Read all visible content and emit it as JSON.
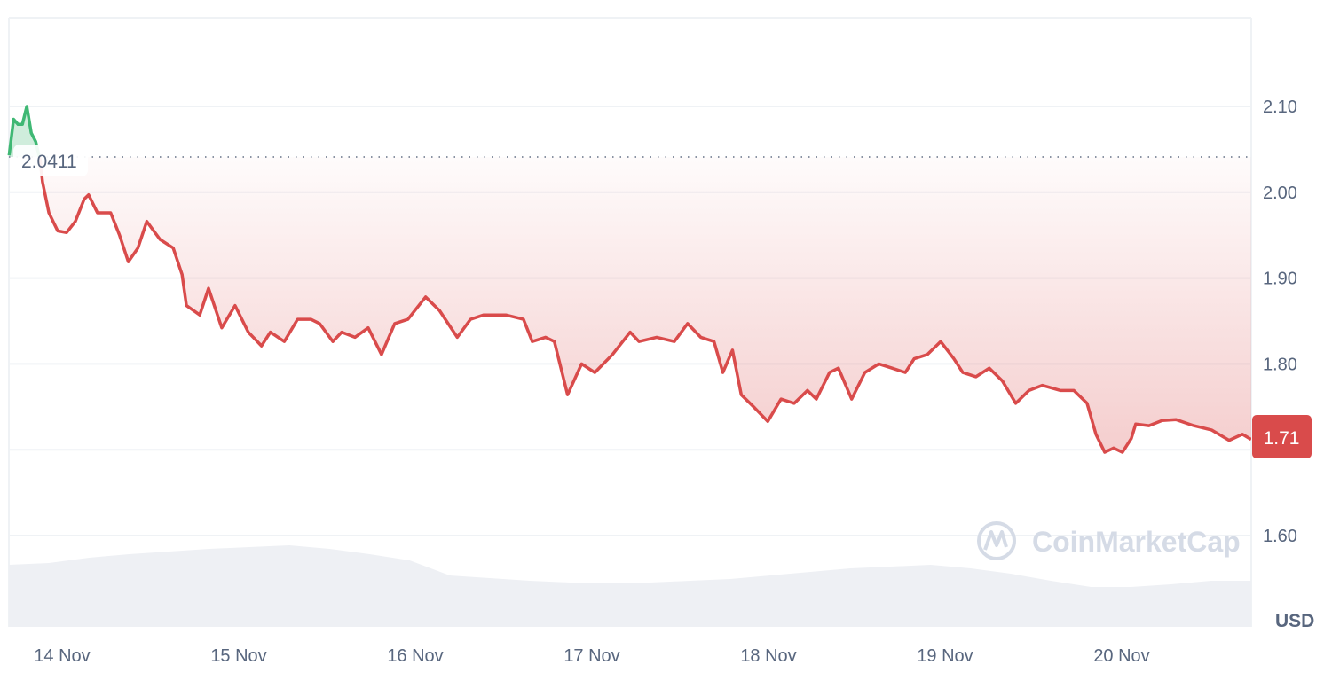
{
  "chart_data": {
    "type": "line",
    "currency_label": "USD",
    "baseline_value": 2.0411,
    "baseline_label": "2.0411",
    "current_price_label": "1.71",
    "ylim": [
      1.6,
      2.1
    ],
    "y_ticks": [
      "2.10",
      "2.00",
      "1.90",
      "1.80",
      "1.60"
    ],
    "y_tick_values": [
      2.1,
      2.0,
      1.9,
      1.8,
      1.6
    ],
    "y_grid_values": [
      2.1,
      2.0,
      1.9,
      1.8,
      1.7,
      1.6
    ],
    "x_ticks": [
      "14 Nov",
      "15 Nov",
      "16 Nov",
      "17 Nov",
      "18 Nov",
      "19 Nov",
      "20 Nov"
    ],
    "grid": true,
    "colors": {
      "up": "#3fb874",
      "down": "#d94b4b",
      "axis_text": "#58667e",
      "grid": "#eff2f5",
      "volume": "#eef0f4",
      "watermark": "#d5dbe6"
    },
    "watermark": "CoinMarketCap",
    "series": [
      {
        "points": [
          [
            "13 Nov 16:48",
            2.043
          ],
          [
            "13 Nov 17:24",
            2.085
          ],
          [
            "13 Nov 18:00",
            2.079
          ],
          [
            "13 Nov 18:36",
            2.079
          ],
          [
            "13 Nov 19:12",
            2.1
          ],
          [
            "13 Nov 19:48",
            2.069
          ],
          [
            "13 Nov 20:24",
            2.059
          ],
          [
            "13 Nov 21:00",
            2.038
          ],
          [
            "13 Nov 21:20",
            2.012
          ],
          [
            "13 Nov 22:12",
            1.976
          ],
          [
            "13 Nov 23:24",
            1.955
          ],
          [
            "14 Nov 00:36",
            1.953
          ],
          [
            "14 Nov 01:48",
            1.966
          ],
          [
            "14 Nov 03:00",
            1.992
          ],
          [
            "14 Nov 03:36",
            1.997
          ],
          [
            "14 Nov 04:48",
            1.976
          ],
          [
            "14 Nov 06:36",
            1.976
          ],
          [
            "14 Nov 07:48",
            1.95
          ],
          [
            "14 Nov 09:00",
            1.919
          ],
          [
            "14 Nov 10:18",
            1.935
          ],
          [
            "14 Nov 11:30",
            1.966
          ],
          [
            "14 Nov 13:18",
            1.945
          ],
          [
            "14 Nov 15:06",
            1.935
          ],
          [
            "14 Nov 16:18",
            1.904
          ],
          [
            "14 Nov 16:54",
            1.868
          ],
          [
            "14 Nov 18:42",
            1.857
          ],
          [
            "14 Nov 19:54",
            1.888
          ],
          [
            "14 Nov 21:42",
            1.842
          ],
          [
            "14 Nov 23:30",
            1.868
          ],
          [
            "15 Nov 01:18",
            1.837
          ],
          [
            "15 Nov 03:06",
            1.821
          ],
          [
            "15 Nov 04:18",
            1.837
          ],
          [
            "15 Nov 06:12",
            1.826
          ],
          [
            "15 Nov 08:00",
            1.852
          ],
          [
            "15 Nov 09:48",
            1.852
          ],
          [
            "15 Nov 11:00",
            1.847
          ],
          [
            "15 Nov 12:48",
            1.826
          ],
          [
            "15 Nov 14:00",
            1.837
          ],
          [
            "15 Nov 15:48",
            1.831
          ],
          [
            "15 Nov 17:36",
            1.842
          ],
          [
            "15 Nov 19:24",
            1.811
          ],
          [
            "15 Nov 21:12",
            1.847
          ],
          [
            "15 Nov 23:00",
            1.852
          ],
          [
            "16 Nov 01:24",
            1.878
          ],
          [
            "16 Nov 03:18",
            1.862
          ],
          [
            "16 Nov 05:42",
            1.831
          ],
          [
            "16 Nov 07:30",
            1.852
          ],
          [
            "16 Nov 09:18",
            1.857
          ],
          [
            "16 Nov 12:18",
            1.857
          ],
          [
            "16 Nov 14:42",
            1.852
          ],
          [
            "16 Nov 15:54",
            1.826
          ],
          [
            "16 Nov 17:42",
            1.831
          ],
          [
            "16 Nov 18:54",
            1.826
          ],
          [
            "16 Nov 20:42",
            1.764
          ],
          [
            "16 Nov 22:36",
            1.8
          ],
          [
            "17 Nov 00:24",
            1.79
          ],
          [
            "17 Nov 02:48",
            1.811
          ],
          [
            "17 Nov 05:12",
            1.837
          ],
          [
            "17 Nov 06:24",
            1.826
          ],
          [
            "17 Nov 08:48",
            1.831
          ],
          [
            "17 Nov 11:12",
            1.826
          ],
          [
            "17 Nov 13:00",
            1.847
          ],
          [
            "17 Nov 14:48",
            1.831
          ],
          [
            "17 Nov 16:36",
            1.826
          ],
          [
            "17 Nov 17:48",
            1.79
          ],
          [
            "17 Nov 19:06",
            1.816
          ],
          [
            "17 Nov 20:18",
            1.764
          ],
          [
            "17 Nov 22:06",
            1.749
          ],
          [
            "17 Nov 23:54",
            1.733
          ],
          [
            "18 Nov 01:42",
            1.759
          ],
          [
            "18 Nov 03:30",
            1.754
          ],
          [
            "18 Nov 05:18",
            1.769
          ],
          [
            "18 Nov 06:30",
            1.759
          ],
          [
            "18 Nov 08:18",
            1.79
          ],
          [
            "18 Nov 09:30",
            1.795
          ],
          [
            "18 Nov 11:18",
            1.759
          ],
          [
            "18 Nov 13:06",
            1.79
          ],
          [
            "18 Nov 15:00",
            1.8
          ],
          [
            "18 Nov 16:48",
            1.795
          ],
          [
            "18 Nov 18:36",
            1.79
          ],
          [
            "18 Nov 19:48",
            1.806
          ],
          [
            "18 Nov 21:36",
            1.811
          ],
          [
            "18 Nov 23:24",
            1.826
          ],
          [
            "19 Nov 01:12",
            1.806
          ],
          [
            "19 Nov 02:24",
            1.79
          ],
          [
            "19 Nov 04:12",
            1.785
          ],
          [
            "19 Nov 06:00",
            1.795
          ],
          [
            "19 Nov 07:48",
            1.78
          ],
          [
            "19 Nov 09:36",
            1.754
          ],
          [
            "19 Nov 11:24",
            1.769
          ],
          [
            "19 Nov 13:12",
            1.775
          ],
          [
            "19 Nov 15:42",
            1.769
          ],
          [
            "19 Nov 17:30",
            1.769
          ],
          [
            "19 Nov 19:18",
            1.754
          ],
          [
            "19 Nov 20:30",
            1.718
          ],
          [
            "19 Nov 21:42",
            1.697
          ],
          [
            "19 Nov 22:54",
            1.702
          ],
          [
            "20 Nov 00:06",
            1.697
          ],
          [
            "20 Nov 01:18",
            1.713
          ],
          [
            "20 Nov 01:54",
            1.73
          ],
          [
            "20 Nov 03:42",
            1.728
          ],
          [
            "20 Nov 05:30",
            1.734
          ],
          [
            "20 Nov 07:24",
            1.735
          ],
          [
            "20 Nov 09:48",
            1.728
          ],
          [
            "20 Nov 12:12",
            1.723
          ],
          [
            "20 Nov 14:36",
            1.711
          ],
          [
            "20 Nov 16:24",
            1.718
          ],
          [
            "20 Nov 17:36",
            1.712
          ]
        ]
      }
    ],
    "volume_relative": [
      0.7,
      0.72,
      0.78,
      0.82,
      0.85,
      0.88,
      0.9,
      0.92,
      0.88,
      0.82,
      0.75,
      0.58,
      0.55,
      0.52,
      0.5,
      0.5,
      0.5,
      0.52,
      0.54,
      0.58,
      0.62,
      0.66,
      0.68,
      0.7,
      0.66,
      0.6,
      0.52,
      0.45,
      0.45,
      0.48,
      0.52,
      0.52
    ]
  }
}
